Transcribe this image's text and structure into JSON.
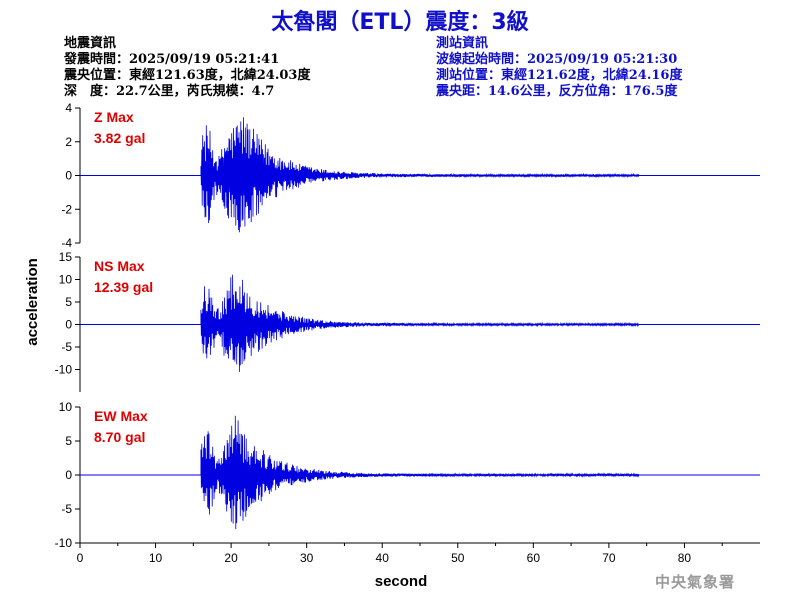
{
  "title": "太魯閣（ETL）震度：3級",
  "event_info": {
    "heading": "地震資訊",
    "origin_time": "發震時間：2025/09/19 05:21:41",
    "epicenter": "震央位置：東經121.63度，北緯24.03度",
    "depth_magnitude": "深　度：22.7公里，芮氏規模：4.7"
  },
  "station_info": {
    "heading": "測站資訊",
    "wave_start": "波線起始時間：2025/09/19 05:21:30",
    "location": "測站位置：東經121.62度，北緯24.16度",
    "distance": "震央距：14.6公里，反方位角：176.5度"
  },
  "agency": "中央氣象署",
  "colors": {
    "title": "#1010c8",
    "trace": "#0000e0",
    "max_label": "#e00000",
    "station_info": "#1010c8"
  },
  "chart_data": {
    "type": "line",
    "xlabel": "second",
    "ylabel": "acceleration",
    "xlim": [
      0,
      90
    ],
    "xticks": [
      0,
      10,
      20,
      30,
      40,
      50,
      60,
      70,
      80
    ],
    "grid": false,
    "series": [
      {
        "name": "Z",
        "max_label": "Z Max",
        "max_value": "3.82 gal",
        "peak": 3.82,
        "ylim": [
          -4,
          4
        ],
        "yticks": [
          -4,
          -2,
          0,
          2,
          4
        ],
        "onset": 16.0,
        "strong_peak_time": 21.5
      },
      {
        "name": "NS",
        "max_label": "NS Max",
        "max_value": "12.39 gal",
        "peak": 12.39,
        "ylim": [
          -15,
          15
        ],
        "yticks": [
          -10,
          -5,
          0,
          5,
          10,
          15
        ],
        "onset": 16.0,
        "strong_peak_time": 20.5
      },
      {
        "name": "EW",
        "max_label": "EW Max",
        "max_value": "8.70 gal",
        "peak": 8.7,
        "ylim": [
          -10,
          10
        ],
        "yticks": [
          -10,
          -5,
          0,
          5,
          10
        ],
        "onset": 16.0,
        "strong_peak_time": 20.5
      }
    ]
  }
}
